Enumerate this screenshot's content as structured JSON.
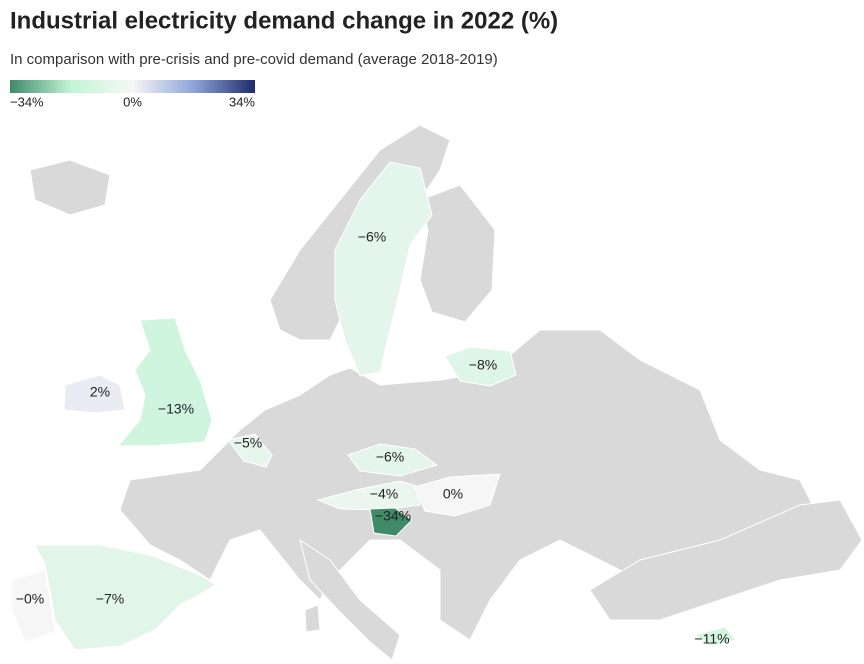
{
  "map": {
    "title": "Industrial electricity demand change in 2022 (%)",
    "subtitle": "In comparison with pre-crisis and pre-covid demand (average 2018-2019)",
    "legend": {
      "range": [
        -34,
        34
      ],
      "colors": [
        "#3f8a68",
        "#c3f5d6",
        "#f6f6f6",
        "#8ea4d9",
        "#1d2c6a"
      ],
      "ticks": [
        {
          "value": -34,
          "label": "−34%"
        },
        {
          "value": 0,
          "label": "0%"
        },
        {
          "value": 34,
          "label": "34%"
        }
      ]
    },
    "regions": [
      {
        "value": -6,
        "label": "−6%"
      },
      {
        "value": -8,
        "label": "−8%"
      },
      {
        "value": 2,
        "label": "2%"
      },
      {
        "value": -13,
        "label": "−13%"
      },
      {
        "value": -5,
        "label": "−5%"
      },
      {
        "value": -6,
        "label": "−6%"
      },
      {
        "value": -4,
        "label": "−4%"
      },
      {
        "value": 0,
        "label": "0%"
      },
      {
        "value": -34,
        "label": "−34%"
      },
      {
        "value": -7,
        "label": "−7%"
      },
      {
        "value": 0,
        "label": "−0%"
      },
      {
        "value": -11,
        "label": "−11%"
      }
    ]
  }
}
